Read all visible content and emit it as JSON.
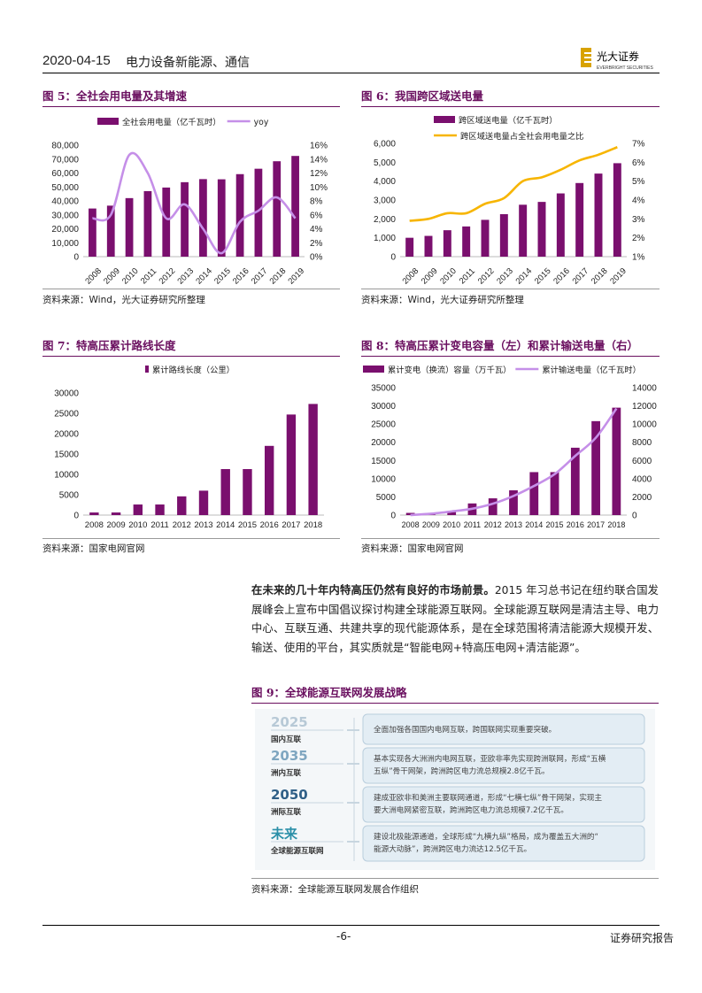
{
  "header": {
    "date": "2020-04-15",
    "sector": "电力设备新能源、通信",
    "logo_text": "光大证券",
    "logo_sub": "EVERBRIGHT SECURITIES"
  },
  "figures": [
    {
      "id": "fig5",
      "title": "图 5：全社会用电量及其增速",
      "source": "资料来源：Wind，光大证券研究所整理"
    },
    {
      "id": "fig6",
      "title": "图 6：我国跨区域送电量",
      "source": "资料来源：Wind，光大证券研究所整理"
    },
    {
      "id": "fig7",
      "title": "图 7：特高压累计路线长度",
      "source": "资料来源：国家电网官网"
    },
    {
      "id": "fig8",
      "title": "图 8：特高压累计变电容量（左）和累计输送电量（右）",
      "source": "资料来源：国家电网官网"
    },
    {
      "id": "fig9",
      "title": "图 9：全球能源互联网发展战略",
      "source": "资料来源：全球能源互联网发展合作组织"
    }
  ],
  "paragraph": {
    "lead": "在未来的几十年内特高压仍然有良好的市场前景。",
    "body": "2015 年习总书记在纽约联合国发展峰会上宣布中国倡议探讨构建全球能源互联网。全球能源互联网是清洁主导、电力中心、互联互通、共建共享的现代能源体系，是在全球范围将清洁能源大规模开发、输送、使用的平台，其实质就是“智能电网+特高压电网+清洁能源”。"
  },
  "strategy": [
    {
      "year": "2025",
      "stage": "国内互联",
      "text": "全面加强各国国内电网互联，跨国联网实现重要突破。"
    },
    {
      "year": "2035",
      "stage": "洲内互联",
      "text": "基本实现各大洲洲内电网互联，亚欧非率先实现跨洲联网，形成“五横五纵”骨干网架，跨洲跨区电力流总规模2.8亿千瓦。"
    },
    {
      "year": "2050",
      "stage": "洲际互联",
      "text": "建成亚欧非和美洲主要联网通道，形成“七横七纵”骨干网架，实现主要大洲电网紧密互联，跨洲跨区电力流总规模7.2亿千瓦。"
    },
    {
      "year": "未来",
      "stage": "全球能源互联网",
      "text": "建设北极能源通道，全球形成“九横九纵”格局，成为覆盖五大洲的“能源大动脉”，跨洲跨区电力流达12.5亿千瓦。"
    }
  ],
  "footer": {
    "page": "-6-",
    "right": "证券研究报告"
  },
  "colors": {
    "bar": "#7a0f6e",
    "line_purple": "#c58fe8",
    "line_yellow": "#f7b500",
    "title": "#6a0f5f"
  },
  "chart_data": [
    {
      "id": "fig5",
      "type": "bar",
      "categories": [
        "2008",
        "2009",
        "2010",
        "2011",
        "2012",
        "2013",
        "2014",
        "2015",
        "2016",
        "2017",
        "2018",
        "2019"
      ],
      "series": [
        {
          "name": "全社会用电量（亿千瓦时）",
          "type": "bar",
          "axis": "left",
          "values": [
            34541,
            36595,
            41999,
            47026,
            49591,
            53423,
            55637,
            55500,
            59198,
            63077,
            68449,
            72255
          ]
        },
        {
          "name": "yoy",
          "type": "line",
          "axis": "right",
          "values": [
            5.5,
            6.0,
            14.6,
            12.0,
            5.5,
            7.5,
            4.0,
            0.5,
            5.0,
            6.6,
            8.5,
            5.5
          ]
        }
      ],
      "yleft": {
        "min": 0,
        "max": 80000,
        "ticks": [
          "0",
          "10,000",
          "20,000",
          "30,000",
          "40,000",
          "50,000",
          "60,000",
          "70,000",
          "80,000"
        ]
      },
      "yright": {
        "min": 0,
        "max": 16,
        "ticks": [
          "0%",
          "2%",
          "4%",
          "6%",
          "8%",
          "10%",
          "12%",
          "14%",
          "16%"
        ]
      },
      "legend": "top"
    },
    {
      "id": "fig6",
      "type": "bar",
      "categories": [
        "2008",
        "2009",
        "2010",
        "2011",
        "2012",
        "2013",
        "2014",
        "2015",
        "2016",
        "2017",
        "2018",
        "2019"
      ],
      "series": [
        {
          "name": "跨区域送电量（亿千瓦时）",
          "type": "bar",
          "axis": "left",
          "values": [
            1000,
            1100,
            1400,
            1600,
            1950,
            2250,
            2750,
            2900,
            3350,
            3900,
            4400,
            4950
          ]
        },
        {
          "name": "跨区域送电量占全社会用电量之比",
          "type": "line",
          "axis": "right",
          "values": [
            2.9,
            3.0,
            3.3,
            3.3,
            3.8,
            4.1,
            5.0,
            5.2,
            5.6,
            6.1,
            6.4,
            6.8
          ]
        }
      ],
      "yleft": {
        "min": 0,
        "max": 6000,
        "ticks": [
          "0",
          "1,000",
          "2,000",
          "3,000",
          "4,000",
          "5,000",
          "6,000"
        ]
      },
      "yright": {
        "min": 1,
        "max": 7,
        "ticks": [
          "1%",
          "2%",
          "3%",
          "4%",
          "5%",
          "6%",
          "7%"
        ]
      },
      "legend": "top"
    },
    {
      "id": "fig7",
      "type": "bar",
      "categories": [
        "2008",
        "2009",
        "2010",
        "2011",
        "2012",
        "2013",
        "2014",
        "2015",
        "2016",
        "2017",
        "2018"
      ],
      "series": [
        {
          "name": "累计路线长度（公里）",
          "type": "bar",
          "axis": "left",
          "values": [
            640,
            640,
            2600,
            2600,
            4600,
            6000,
            11300,
            11300,
            17000,
            24700,
            27300
          ]
        }
      ],
      "yleft": {
        "min": 0,
        "max": 30000,
        "ticks": [
          "0",
          "5000",
          "10000",
          "15000",
          "20000",
          "25000",
          "30000"
        ]
      },
      "legend": "top"
    },
    {
      "id": "fig8",
      "type": "bar",
      "categories": [
        "2008",
        "2009",
        "2010",
        "2011",
        "2012",
        "2013",
        "2014",
        "2015",
        "2016",
        "2017",
        "2018"
      ],
      "series": [
        {
          "name": "累计变电（换流）容量（万千瓦）",
          "type": "bar",
          "axis": "left",
          "values": [
            600,
            600,
            1000,
            3200,
            4600,
            6800,
            11800,
            11800,
            18500,
            25800,
            29500
          ]
        },
        {
          "name": "累计输送电量（亿千瓦时）",
          "type": "line",
          "axis": "right",
          "values": [
            10,
            150,
            400,
            700,
            1250,
            2100,
            3200,
            4500,
            6500,
            8500,
            11700
          ]
        }
      ],
      "yleft": {
        "min": 0,
        "max": 35000,
        "ticks": [
          "0",
          "5000",
          "10000",
          "15000",
          "20000",
          "25000",
          "30000",
          "35000"
        ]
      },
      "yright": {
        "min": 0,
        "max": 14000,
        "ticks": [
          "0",
          "2000",
          "4000",
          "6000",
          "8000",
          "10000",
          "12000",
          "14000"
        ]
      },
      "legend": "top"
    }
  ]
}
